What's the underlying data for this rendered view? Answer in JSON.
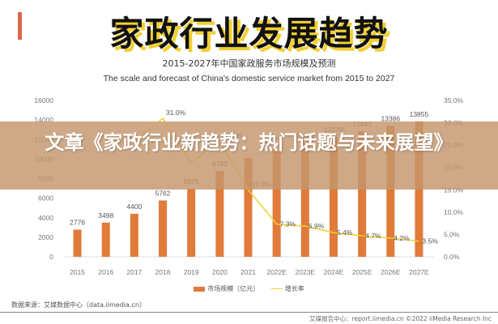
{
  "header": {
    "main_title": "家政行业发展趋势",
    "subtitle_cn": "2015-2027年中国家政服务市场规模及预测",
    "subtitle_en": "The scale and forecast of China's domestic service market from 2015 to 2027"
  },
  "banner": {
    "text": "文章《家政行业新趋势：热门话题与未来展望》"
  },
  "legend": {
    "bar_label": "市场规模（亿元）",
    "line_label": "增长率"
  },
  "source": "数据来源：艾媒数据中心（data.iimedia.cn）",
  "footer": "艾媒报告中心：report.iimedia.cn  ©2022  iiMedia Research Inc",
  "colors": {
    "bar": "#e07b39",
    "line": "#f2d033",
    "title_shadow": "#f2d033",
    "accent": "#d9694a"
  },
  "chart_data": {
    "type": "bar",
    "title": "2015-2027年中国家政服务市场规模及预测",
    "categories": [
      "2015",
      "2016",
      "2017",
      "2018",
      "2019",
      "2020",
      "2021",
      "2022E",
      "2023E",
      "2024E",
      "2025E",
      "2026E",
      "2027E"
    ],
    "series": [
      {
        "name": "市场规模（亿元）",
        "type": "bar",
        "axis": "left",
        "values": [
          2776,
          3498,
          4400,
          5762,
          6975,
          8782,
          10100,
          10843,
          11641,
          12270,
          12847,
          13386,
          13855
        ]
      },
      {
        "name": "增长率",
        "type": "line",
        "axis": "right",
        "values": [
          null,
          26.0,
          25.8,
          31.0,
          21.1,
          25.9,
          15.0,
          7.3,
          6.9,
          5.4,
          4.7,
          4.2,
          3.5
        ]
      }
    ],
    "left_axis": {
      "ticks": [
        "0",
        "2000",
        "4000",
        "6000",
        "8000",
        "10000",
        "12000",
        "14000",
        "16000"
      ],
      "ylim": [
        0,
        16000
      ]
    },
    "right_axis": {
      "ticks": [
        "0.0%",
        "5.0%",
        "10.0%",
        "15.0%",
        "20.0%",
        "25.0%",
        "30.0%",
        "35.0%"
      ],
      "ylim": [
        0,
        35
      ]
    },
    "bar_labels": [
      "2776",
      "3498",
      "4400",
      "5762",
      "6975",
      "8782",
      "",
      "",
      "11641",
      "12270",
      "12847",
      "13386",
      "13855"
    ],
    "line_labels": [
      "",
      "",
      "",
      "31.0%",
      "",
      "25.9%",
      "15.0%",
      "7.3%",
      "6.9%",
      "5.4%",
      "4.7%",
      "4.2%",
      "3.5%"
    ],
    "legend_position": "bottom"
  }
}
